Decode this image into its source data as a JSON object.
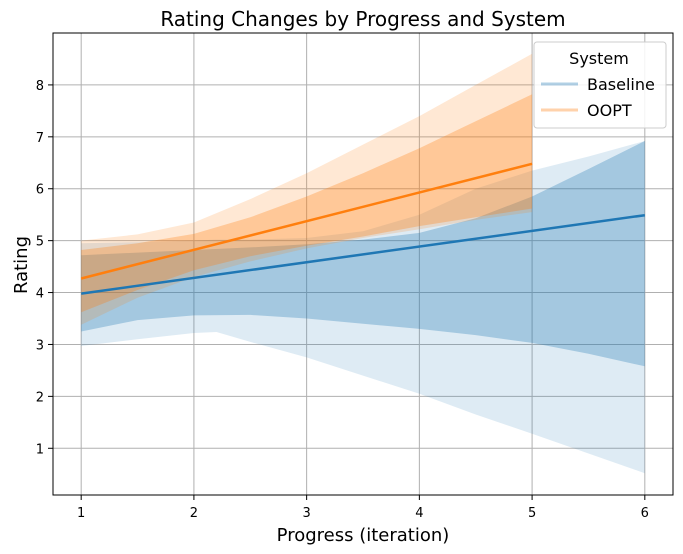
{
  "chart_data": {
    "type": "line",
    "title": "Rating Changes by Progress and System",
    "xlabel": "Progress (iteration)",
    "ylabel": "Rating",
    "xlim": [
      0.75,
      6.25
    ],
    "ylim": [
      0.1,
      9.0
    ],
    "xticks": [
      1,
      2,
      3,
      4,
      5,
      6
    ],
    "yticks": [
      1,
      2,
      3,
      4,
      5,
      6,
      7,
      8
    ],
    "grid": true,
    "legend": {
      "title": "System",
      "position": "top-right"
    },
    "series": [
      {
        "name": "Baseline",
        "color": "#1f77b4",
        "x": [
          1,
          6
        ],
        "y": [
          3.98,
          5.49
        ],
        "bands": [
          {
            "opacity": 0.3,
            "x": [
              1,
              1.5,
              2,
              2.5,
              3,
              3.5,
              4,
              4.5,
              5,
              5.5,
              6
            ],
            "lower": [
              3.25,
              3.47,
              3.56,
              3.57,
              3.5,
              3.4,
              3.3,
              3.18,
              3.03,
              2.82,
              2.58
            ],
            "upper": [
              4.72,
              4.77,
              4.82,
              4.87,
              4.93,
              5.02,
              5.15,
              5.43,
              5.85,
              6.38,
              6.92
            ]
          },
          {
            "opacity": 0.15,
            "x": [
              1,
              1.5,
              2,
              2.2,
              2.5,
              3,
              3.5,
              4,
              4.5,
              5,
              5.5,
              6
            ],
            "lower": [
              2.97,
              3.1,
              3.22,
              3.24,
              3.05,
              2.75,
              2.4,
              2.05,
              1.65,
              1.28,
              0.9,
              0.52
            ],
            "upper": [
              4.95,
              4.97,
              5.0,
              5.02,
              5.02,
              5.05,
              5.18,
              5.5,
              6.0,
              6.35,
              6.62,
              6.92
            ]
          }
        ]
      },
      {
        "name": "OOPT",
        "color": "#ff7f0e",
        "x": [
          1,
          5
        ],
        "y": [
          4.27,
          6.48
        ],
        "bands": [
          {
            "opacity": 0.3,
            "x": [
              1,
              1.5,
              2,
              2.5,
              3,
              3.5,
              4,
              4.5,
              5
            ],
            "lower": [
              3.62,
              4.05,
              4.43,
              4.7,
              4.9,
              5.08,
              5.28,
              5.45,
              5.62
            ],
            "upper": [
              4.82,
              4.95,
              5.13,
              5.45,
              5.85,
              6.3,
              6.78,
              7.3,
              7.82
            ]
          },
          {
            "opacity": 0.18,
            "x": [
              1,
              1.5,
              2,
              2.5,
              3,
              3.5,
              4,
              4.5,
              5
            ],
            "lower": [
              3.38,
              3.9,
              4.3,
              4.6,
              4.85,
              5.05,
              5.22,
              5.4,
              5.55
            ],
            "upper": [
              5.0,
              5.12,
              5.35,
              5.8,
              6.3,
              6.85,
              7.4,
              8.0,
              8.6
            ]
          }
        ]
      }
    ]
  }
}
